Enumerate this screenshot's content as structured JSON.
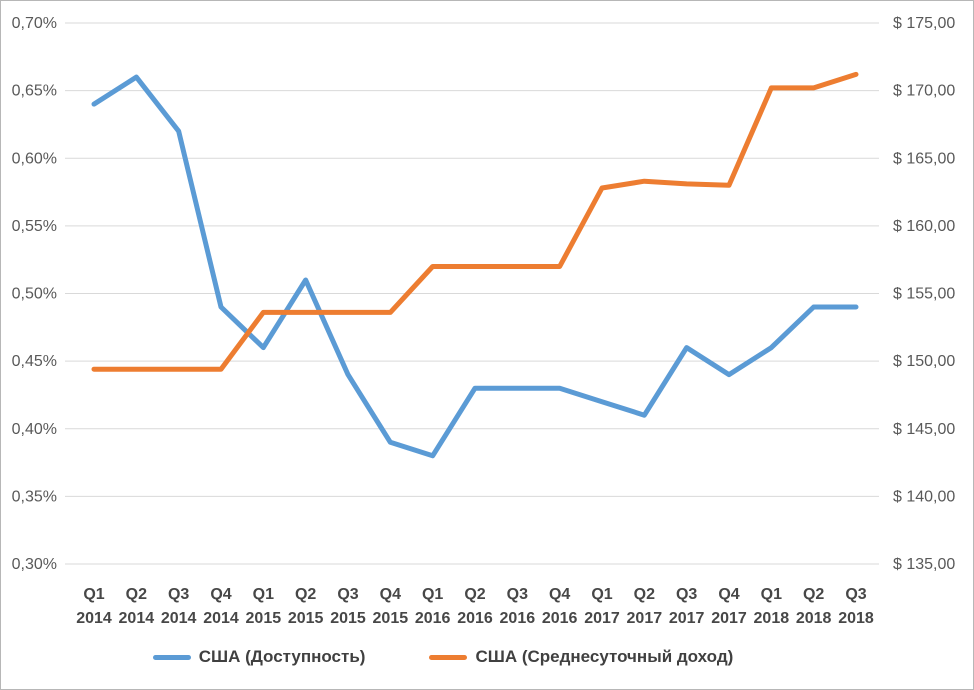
{
  "window": {
    "background_color": "#ffffff",
    "border_color": "#b7b7b7"
  },
  "chart_data": {
    "type": "line",
    "title": "",
    "categories": [
      "Q1 2014",
      "Q2 2014",
      "Q3 2014",
      "Q4 2014",
      "Q1 2015",
      "Q2 2015",
      "Q3 2015",
      "Q4 2015",
      "Q1 2016",
      "Q2 2016",
      "Q3 2016",
      "Q4 2016",
      "Q1 2017",
      "Q2 2017",
      "Q3 2017",
      "Q4 2017",
      "Q1 2018",
      "Q2 2018",
      "Q3 2018"
    ],
    "series": [
      {
        "name": "США (Доступность)",
        "axis": "left",
        "color": "#5B9BD5",
        "values": [
          0.64,
          0.66,
          0.62,
          0.49,
          0.46,
          0.51,
          0.44,
          0.39,
          0.38,
          0.43,
          0.43,
          0.43,
          0.42,
          0.41,
          0.46,
          0.44,
          0.46,
          0.49,
          0.49
        ]
      },
      {
        "name": "США (Среднесуточный доход)",
        "axis": "right",
        "color": "#ED7D31",
        "values": [
          149.4,
          149.4,
          149.4,
          149.4,
          153.6,
          153.6,
          153.6,
          153.6,
          157.0,
          157.0,
          157.0,
          157.0,
          162.8,
          163.3,
          163.1,
          163.0,
          170.2,
          170.2,
          171.2
        ]
      }
    ],
    "left_axis": {
      "min": 0.3,
      "max": 0.7,
      "step": 0.05,
      "unit": "%",
      "tick_labels": [
        "0,70%",
        "0,65%",
        "0,60%",
        "0,55%",
        "0,50%",
        "0,45%",
        "0,40%",
        "0,35%",
        "0,30%"
      ]
    },
    "right_axis": {
      "min": 135,
      "max": 175,
      "step": 5,
      "unit": "$",
      "tick_labels": [
        "$ 175,00",
        "$ 170,00",
        "$ 165,00",
        "$ 160,00",
        "$ 155,00",
        "$ 150,00",
        "$ 145,00",
        "$ 140,00",
        "$ 135,00"
      ]
    },
    "grid": {
      "horizontal": true,
      "color": "#D9D9D9"
    },
    "legend": {
      "position": "bottom"
    }
  }
}
